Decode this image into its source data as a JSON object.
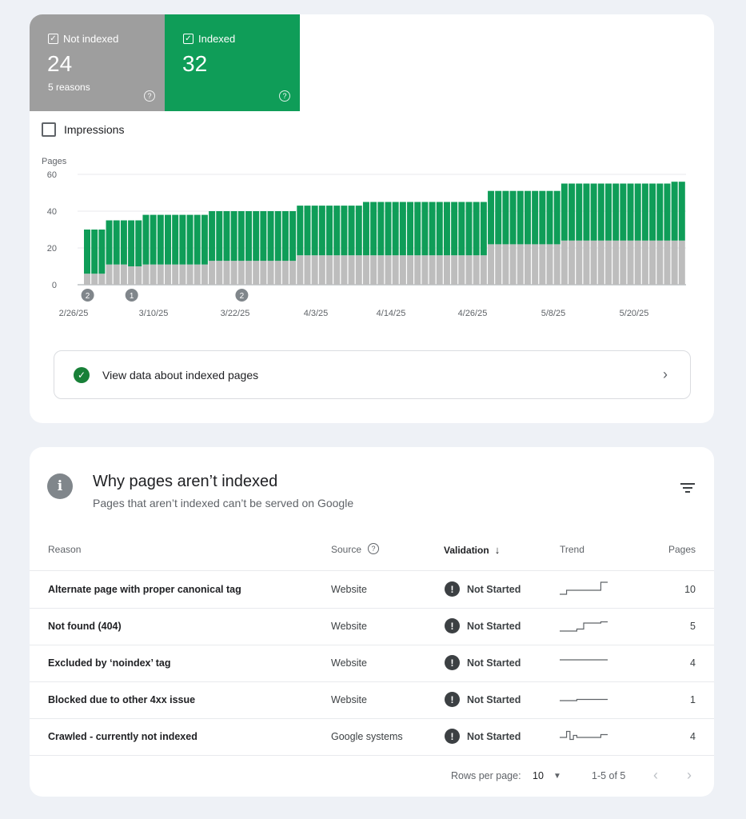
{
  "tiles": {
    "not_indexed": {
      "label": "Not indexed",
      "value": "24",
      "sub": "5 reasons",
      "color": "#9e9e9e"
    },
    "indexed": {
      "label": "Indexed",
      "value": "32",
      "color": "#0f9d58"
    }
  },
  "impressions_label": "Impressions",
  "chart_data": {
    "type": "bar",
    "ylabel": "Pages",
    "ylim": [
      0,
      60
    ],
    "yticks": [
      0,
      20,
      40,
      60
    ],
    "x_ticks": [
      "2/26/25",
      "3/10/25",
      "3/22/25",
      "4/3/25",
      "4/14/25",
      "4/26/25",
      "5/8/25",
      "5/20/25"
    ],
    "stacked": true,
    "series": [
      {
        "name": "Not indexed",
        "color": "#bdbdbd",
        "values": [
          6,
          6,
          6,
          11,
          11,
          11,
          10,
          10,
          11,
          11,
          11,
          11,
          11,
          11,
          11,
          11,
          11,
          13,
          13,
          13,
          13,
          13,
          13,
          13,
          13,
          13,
          13,
          13,
          13,
          16,
          16,
          16,
          16,
          16,
          16,
          16,
          16,
          16,
          16,
          16,
          16,
          16,
          16,
          16,
          16,
          16,
          16,
          16,
          16,
          16,
          16,
          16,
          16,
          16,
          16,
          22,
          22,
          22,
          22,
          22,
          22,
          22,
          22,
          22,
          22,
          24,
          24,
          24,
          24,
          24,
          24,
          24,
          24,
          24,
          24,
          24,
          24,
          24,
          24,
          24,
          24,
          24
        ]
      },
      {
        "name": "Indexed",
        "color": "#0f9d58",
        "values": [
          24,
          24,
          24,
          24,
          24,
          24,
          25,
          25,
          27,
          27,
          27,
          27,
          27,
          27,
          27,
          27,
          27,
          27,
          27,
          27,
          27,
          27,
          27,
          27,
          27,
          27,
          27,
          27,
          27,
          27,
          27,
          27,
          27,
          27,
          27,
          27,
          27,
          27,
          29,
          29,
          29,
          29,
          29,
          29,
          29,
          29,
          29,
          29,
          29,
          29,
          29,
          29,
          29,
          29,
          29,
          29,
          29,
          29,
          29,
          29,
          29,
          29,
          29,
          29,
          29,
          31,
          31,
          31,
          31,
          31,
          31,
          31,
          31,
          31,
          31,
          31,
          31,
          31,
          31,
          31,
          32,
          32
        ]
      }
    ],
    "annotations": [
      {
        "index": 0,
        "label": "2"
      },
      {
        "index": 6,
        "label": "1"
      },
      {
        "index": 21,
        "label": "2"
      }
    ]
  },
  "view_data_label": "View data about indexed pages",
  "section": {
    "title": "Why pages aren’t indexed",
    "subtitle": "Pages that aren’t indexed can’t be served on Google"
  },
  "table": {
    "headers": {
      "reason": "Reason",
      "source": "Source",
      "validation": "Validation",
      "trend": "Trend",
      "pages": "Pages"
    },
    "rows": [
      {
        "reason": "Alternate page with proper canonical tag",
        "source": "Website",
        "validation": "Not Started",
        "pages": "10",
        "trend": [
          3,
          3,
          2,
          2,
          2,
          2,
          2,
          2,
          2,
          2,
          2,
          2,
          0,
          0,
          0
        ]
      },
      {
        "reason": "Not found (404)",
        "source": "Website",
        "validation": "Not Started",
        "pages": "5",
        "trend": [
          3,
          3,
          3,
          3,
          3,
          2.5,
          2.5,
          1,
          1,
          1,
          1,
          1,
          0.7,
          0.7,
          0.7
        ]
      },
      {
        "reason": "Excluded by ‘noindex’ tag",
        "source": "Website",
        "validation": "Not Started",
        "pages": "4",
        "trend": [
          1,
          1,
          1,
          1,
          1,
          1,
          1,
          1,
          1,
          1,
          1,
          1,
          1,
          1,
          1
        ]
      },
      {
        "reason": "Blocked due to other 4xx issue",
        "source": "Website",
        "validation": "Not Started",
        "pages": "1",
        "trend": [
          2,
          2,
          2,
          2,
          2,
          1.7,
          1.7,
          1.7,
          1.7,
          1.7,
          1.7,
          1.7,
          1.7,
          1.7,
          1.7
        ]
      },
      {
        "reason": "Crawled - currently not indexed",
        "source": "Google systems",
        "validation": "Not Started",
        "pages": "4",
        "trend": [
          2,
          2,
          0.5,
          2.5,
          1.5,
          2,
          2,
          2,
          2,
          2,
          2,
          2,
          1.3,
          1.3,
          1.3
        ]
      }
    ]
  },
  "pager": {
    "rows_per_page_label": "Rows per page:",
    "rows_per_page": "10",
    "range": "1-5 of 5"
  }
}
